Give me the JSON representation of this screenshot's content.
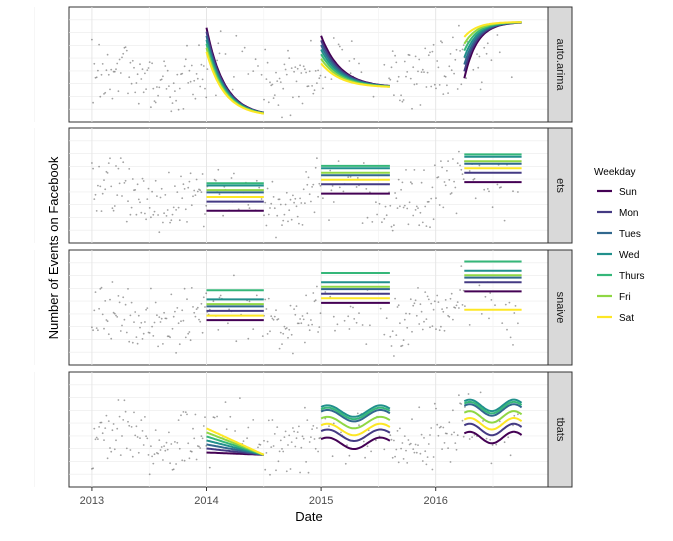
{
  "chart_data": {
    "type": "line",
    "title": "",
    "xlabel": "Date",
    "ylabel": "Number of Events on Facebook",
    "x_range": [
      2012.8,
      2016.98
    ],
    "x_ticks": [
      {
        "value": 2013,
        "label": "2013"
      },
      {
        "value": 2014,
        "label": "2014"
      },
      {
        "value": 2015,
        "label": "2015"
      },
      {
        "value": 2016,
        "label": "2016"
      }
    ],
    "y_range": [
      0,
      1
    ],
    "grid": true,
    "facets": [
      "auto.arima",
      "ets",
      "snaive",
      "tbats"
    ],
    "legend": {
      "title": "Weekday",
      "position": "right",
      "entries": [
        {
          "name": "Sun",
          "color": "#440154"
        },
        {
          "name": "Mon",
          "color": "#443a83"
        },
        {
          "name": "Tues",
          "color": "#31688e"
        },
        {
          "name": "Wed",
          "color": "#21908c"
        },
        {
          "name": "Thurs",
          "color": "#35b779"
        },
        {
          "name": "Fri",
          "color": "#8fd744"
        },
        {
          "name": "Sat",
          "color": "#fde725"
        }
      ]
    },
    "forecast_windows": [
      [
        2014.0,
        2014.5
      ],
      [
        2015.0,
        2015.6
      ],
      [
        2016.25,
        2016.75
      ]
    ],
    "observed_note": "grey points: daily observed counts (schematic)"
  }
}
